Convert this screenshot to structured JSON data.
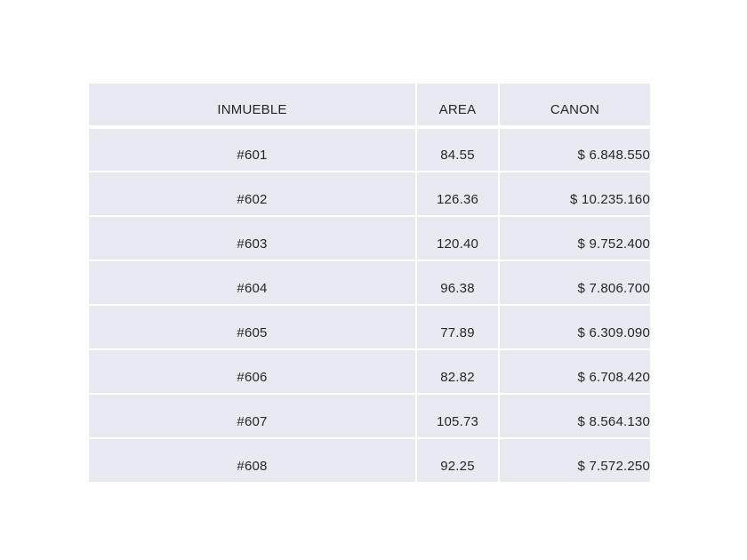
{
  "chart_data": {
    "type": "table",
    "title": "",
    "columns": [
      "INMUEBLE",
      "AREA",
      "CANON"
    ],
    "rows": [
      [
        "#601",
        "84.55",
        "$ 6.848.550"
      ],
      [
        "#602",
        "126.36",
        "$ 10.235.160"
      ],
      [
        "#603",
        "120.40",
        "$ 9.752.400"
      ],
      [
        "#604",
        "96.38",
        "$ 7.806.700"
      ],
      [
        "#605",
        "77.89",
        "$ 6.309.090"
      ],
      [
        "#606",
        "82.82",
        "$ 6.708.420"
      ],
      [
        "#607",
        "105.73",
        "$ 8.564.130"
      ],
      [
        "#608",
        "92.25",
        "$ 7.572.250"
      ]
    ],
    "layout": {
      "grid": "white gridlines between cells",
      "header_separator": "thicker",
      "col_alignment": [
        "center",
        "center",
        "right"
      ]
    }
  },
  "colors": {
    "cell_bg": "#e8eaf2",
    "grid": "#ffffff",
    "text": "#262626",
    "page_bg": "#ffffff"
  }
}
